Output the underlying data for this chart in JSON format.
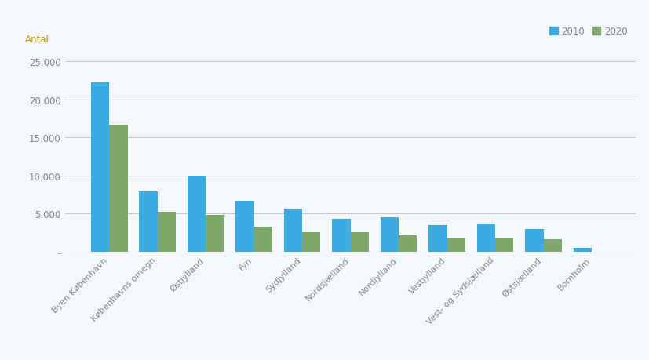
{
  "categories": [
    "Byen København",
    "Københavns omegn",
    "Østjylland",
    "Fyn",
    "Sydjylland",
    "Nordsjælland",
    "Nordjylland",
    "Vestjylland",
    "Vest- og Sydsjælland",
    "Østsjælland",
    "Bornholm"
  ],
  "values_2010": [
    22200,
    7900,
    10000,
    6700,
    5600,
    4300,
    4500,
    3500,
    3700,
    3000,
    500
  ],
  "values_2020": [
    16700,
    5300,
    4800,
    3300,
    2600,
    2550,
    2200,
    1750,
    1700,
    1600,
    0
  ],
  "color_2010": "#3AACE2",
  "color_2020": "#7EA86A",
  "ylabel": "Antal",
  "ylim": [
    0,
    27000
  ],
  "yticks": [
    0,
    5000,
    10000,
    15000,
    20000,
    25000
  ],
  "ytick_labels": [
    "-",
    "5.000",
    "10.000",
    "15.000",
    "20.000",
    "25.000"
  ],
  "legend_labels": [
    "2010",
    "2020"
  ],
  "background_color": "#F4F7FB",
  "grid_color": "#C8C8C8",
  "label_color": "#C8A000",
  "tick_color": "#888888",
  "bar_width": 0.38
}
